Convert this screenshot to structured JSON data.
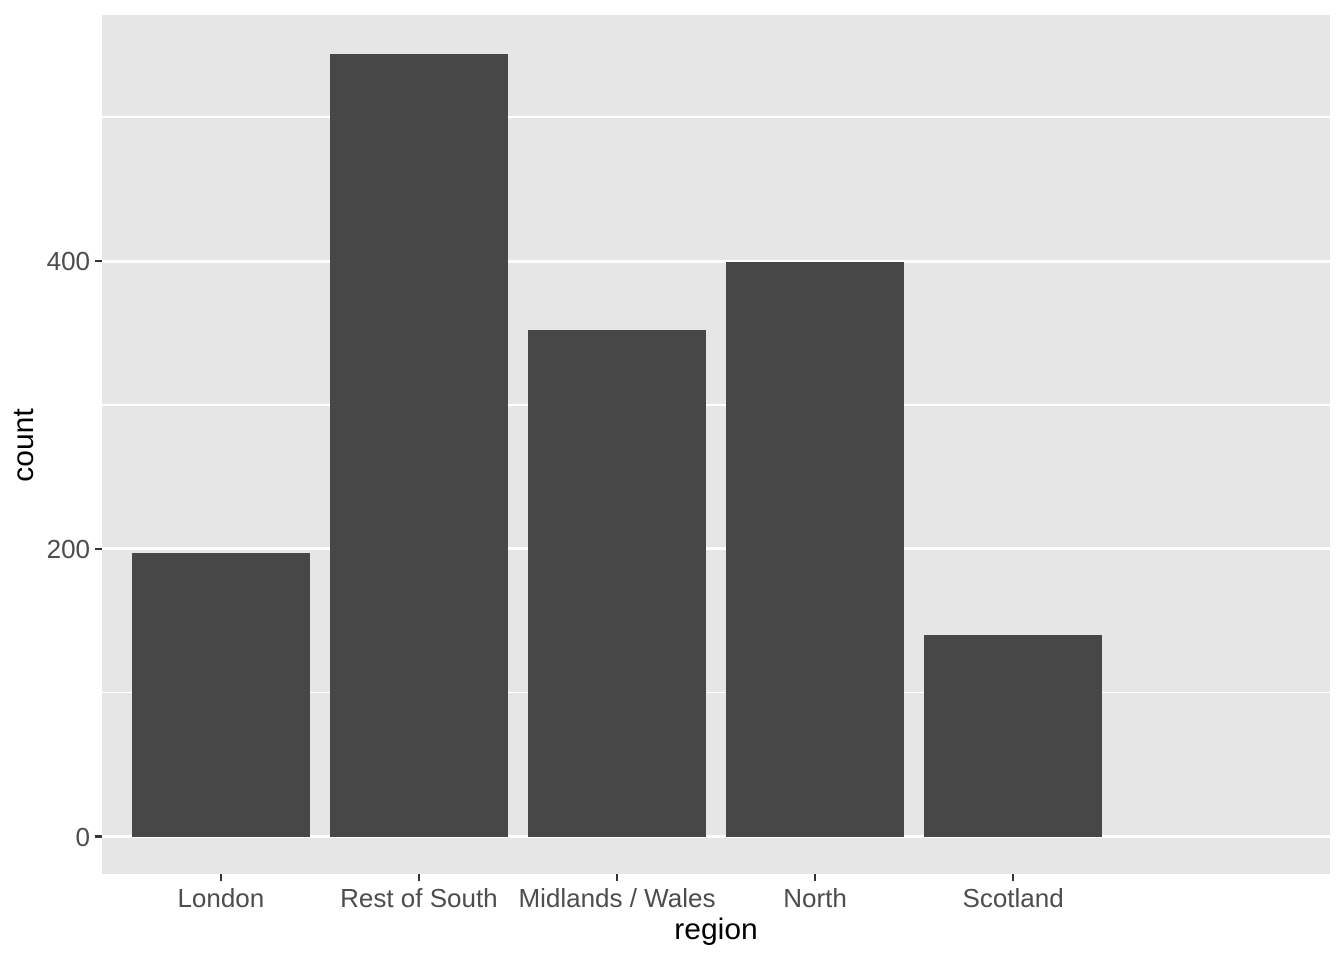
{
  "chart_data": {
    "type": "bar",
    "title": "",
    "xlabel": "region",
    "ylabel": "count",
    "categories": [
      "London",
      "Rest of South",
      "Midlands / Wales",
      "North",
      "Scotland"
    ],
    "values": [
      197,
      544,
      352,
      399,
      140
    ],
    "y_tick_values": [
      0,
      200,
      400
    ],
    "y_tick_labels": [
      "0",
      "200",
      "400"
    ],
    "y_minor_gridlines": [
      100,
      300,
      500
    ],
    "ylim": [
      -26,
      571
    ],
    "x_expand_units": 0.6,
    "bar_width_fraction": 0.9,
    "grid": "major-and-minor horizontal, white on gray panel",
    "legend_position": "none",
    "colors": {
      "bar_fill": "#474747",
      "panel_background": "#E6E6E6",
      "gridline": "#FFFFFF",
      "tick_text": "#4D4D4D",
      "axis_title_text": "#000000",
      "tick_mark": "#333333",
      "page_background": "#FFFFFF"
    }
  }
}
